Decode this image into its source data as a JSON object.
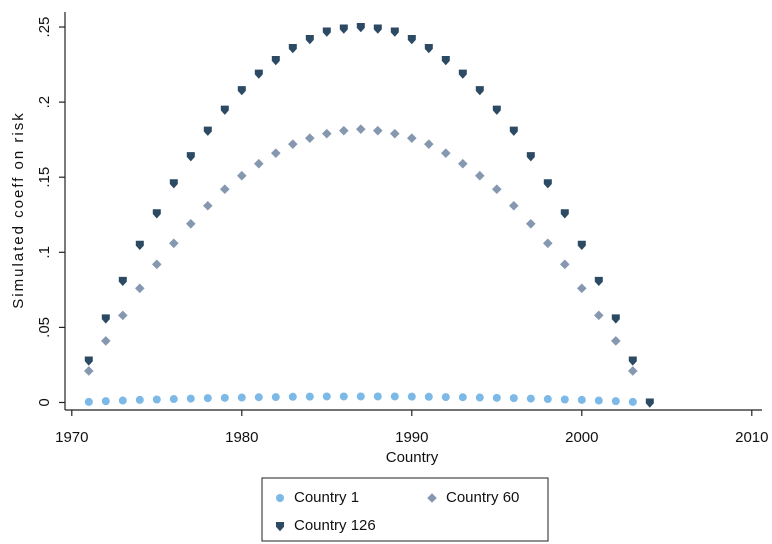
{
  "chart_data": {
    "type": "scatter",
    "x_label": "Country",
    "y_label": "Simulated coeff on risk",
    "x": [
      1971,
      1972,
      1973,
      1974,
      1975,
      1976,
      1977,
      1978,
      1979,
      1980,
      1981,
      1982,
      1983,
      1984,
      1985,
      1986,
      1987,
      1988,
      1989,
      1990,
      1991,
      1992,
      1993,
      1994,
      1995,
      1996,
      1997,
      1998,
      1999,
      2000,
      2001,
      2002,
      2003,
      2004
    ],
    "series": [
      {
        "name": "Country 1",
        "color": "#7cb9e6",
        "marker": "circle",
        "values": [
          0.0004,
          0.0009,
          0.0013,
          0.0017,
          0.002,
          0.0023,
          0.0026,
          0.0029,
          0.0031,
          0.0033,
          0.0035,
          0.0036,
          0.0038,
          0.0039,
          0.004,
          0.004,
          0.004,
          0.004,
          0.004,
          0.0039,
          0.0038,
          0.0036,
          0.0035,
          0.0033,
          0.0031,
          0.0029,
          0.0026,
          0.0023,
          0.002,
          0.0017,
          0.0013,
          0.0009,
          0.0004,
          null
        ]
      },
      {
        "name": "Country 60",
        "color": "#8598b0",
        "marker": "diamond",
        "values": [
          0.021,
          0.041,
          0.058,
          0.076,
          0.092,
          0.106,
          0.119,
          0.131,
          0.142,
          0.151,
          0.159,
          0.166,
          0.172,
          0.176,
          0.179,
          0.181,
          0.182,
          0.181,
          0.179,
          0.176,
          0.172,
          0.166,
          0.159,
          0.151,
          0.142,
          0.131,
          0.119,
          0.106,
          0.092,
          0.076,
          0.058,
          0.041,
          0.021,
          null
        ]
      },
      {
        "name": "Country 126",
        "color": "#2c4a63",
        "marker": "triangle",
        "values": [
          0.028,
          0.056,
          0.081,
          0.105,
          0.126,
          0.146,
          0.164,
          0.181,
          0.195,
          0.208,
          0.219,
          0.228,
          0.236,
          0.242,
          0.247,
          0.249,
          0.25,
          0.249,
          0.247,
          0.242,
          0.236,
          0.228,
          0.219,
          0.208,
          0.195,
          0.181,
          0.164,
          0.146,
          0.126,
          0.105,
          0.081,
          0.056,
          0.028,
          0
        ]
      }
    ],
    "xlim": [
      1969.6,
      2010.6
    ],
    "xticks": [
      1970,
      1980,
      1990,
      2000,
      2010
    ],
    "ylim": [
      -0.005,
      0.26
    ],
    "yticks": [
      0,
      {
        "value": 0.05,
        "label": ".05"
      },
      {
        "value": 0.1,
        "label": ".1"
      },
      {
        "value": 0.15,
        "label": ".15"
      },
      {
        "value": 0.2,
        "label": ".2"
      },
      {
        "value": 0.25,
        "label": ".25"
      }
    ]
  }
}
